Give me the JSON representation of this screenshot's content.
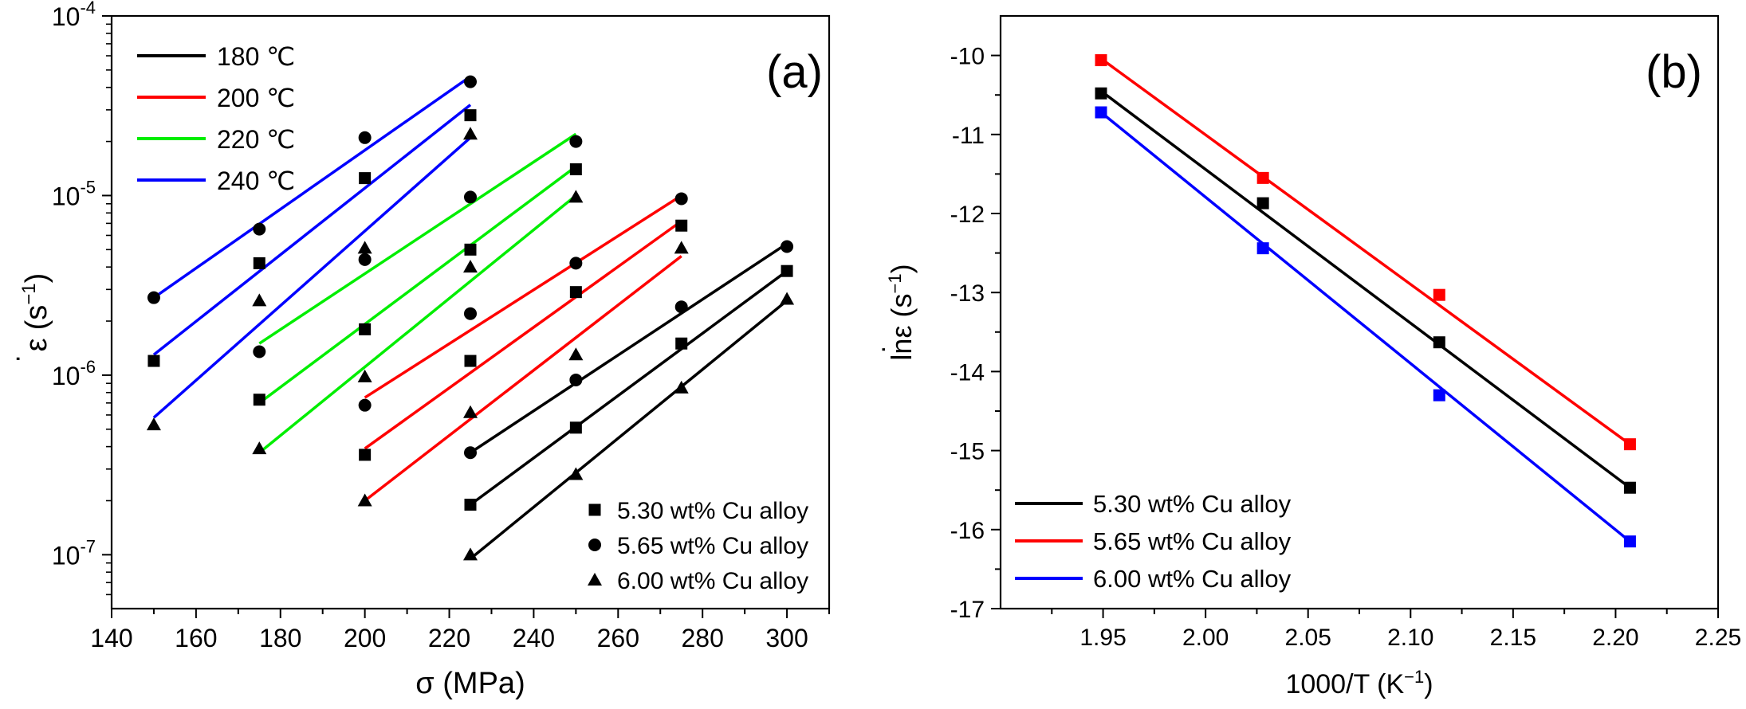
{
  "chart_data": [
    {
      "type": "scatter",
      "panel_label": "(a)",
      "xlabel": "σ (MPa)",
      "ylabel_main": "ε",
      "ylabel_unit": "(s",
      "ylabel_exp": "−1",
      "ylabel_close": ")",
      "xlim": [
        140,
        310
      ],
      "ylim_log10": [
        -7.3,
        -4
      ],
      "y_scale": "log",
      "x_ticks": [
        140,
        160,
        180,
        200,
        220,
        240,
        260,
        280,
        300
      ],
      "x_tick_labels": [
        "140",
        "160",
        "180",
        "200",
        "220",
        "240",
        "260",
        "280",
        "300"
      ],
      "y_ticks_log10": [
        -7,
        -6,
        -5,
        -4
      ],
      "y_tick_labels": [
        {
          "base": "10",
          "exp": "-7"
        },
        {
          "base": "10",
          "exp": "-6"
        },
        {
          "base": "10",
          "exp": "-5"
        },
        {
          "base": "10",
          "exp": "-4"
        }
      ],
      "legend_lines": [
        {
          "label": "180 ℃",
          "color": "#000000"
        },
        {
          "label": "200 ℃",
          "color": "#ff0000"
        },
        {
          "label": "220 ℃",
          "color": "#00ee00"
        },
        {
          "label": "240 ℃",
          "color": "#0000ff"
        }
      ],
      "legend_markers": [
        {
          "label": "5.30 wt% Cu alloy",
          "marker": "square"
        },
        {
          "label": "5.65 wt% Cu alloy",
          "marker": "circle"
        },
        {
          "label": "6.00 wt% Cu alloy",
          "marker": "triangle"
        }
      ],
      "series": [
        {
          "name": "180 ℃ / 5.30 wt% Cu alloy",
          "color": "#000000",
          "marker": "square",
          "x": [
            225,
            250,
            275,
            300
          ],
          "y": [
            1.9e-07,
            5.1e-07,
            1.5e-06,
            3.8e-06
          ],
          "fit": [
            [
              225,
              1.9e-07
            ],
            [
              300,
              3.8e-06
            ]
          ]
        },
        {
          "name": "180 ℃ / 5.65 wt% Cu alloy",
          "color": "#000000",
          "marker": "circle",
          "x": [
            225,
            250,
            275,
            300
          ],
          "y": [
            3.7e-07,
            9.4e-07,
            2.4e-06,
            5.2e-06
          ],
          "fit": [
            [
              225,
              3.7e-07
            ],
            [
              300,
              5.4e-06
            ]
          ]
        },
        {
          "name": "180 ℃ / 6.00 wt% Cu alloy",
          "color": "#000000",
          "marker": "triangle",
          "x": [
            225,
            250,
            275,
            300
          ],
          "y": [
            1e-07,
            2.8e-07,
            8.5e-07,
            2.65e-06
          ],
          "fit": [
            [
              225,
              9.5e-08
            ],
            [
              300,
              2.6e-06
            ]
          ]
        },
        {
          "name": "200 ℃ / 5.30 wt% Cu alloy",
          "color": "#ff0000",
          "marker": "square",
          "x": [
            200,
            225,
            250,
            275
          ],
          "y": [
            3.6e-07,
            1.2e-06,
            2.9e-06,
            6.8e-06
          ],
          "fit": [
            [
              200,
              3.9e-07
            ],
            [
              275,
              7.2e-06
            ]
          ]
        },
        {
          "name": "200 ℃ / 5.65 wt% Cu alloy",
          "color": "#ff0000",
          "marker": "circle",
          "x": [
            200,
            225,
            250,
            275
          ],
          "y": [
            6.8e-07,
            2.2e-06,
            4.2e-06,
            9.6e-06
          ],
          "fit": [
            [
              200,
              7.5e-07
            ],
            [
              275,
              1e-05
            ]
          ]
        },
        {
          "name": "200 ℃ / 6.00 wt% Cu alloy",
          "color": "#ff0000",
          "marker": "triangle",
          "x": [
            200,
            225,
            250,
            275
          ],
          "y": [
            2e-07,
            6.2e-07,
            1.3e-06,
            5.1e-06
          ],
          "fit": [
            [
              200,
              2e-07
            ],
            [
              275,
              4.6e-06
            ]
          ]
        },
        {
          "name": "220 ℃ / 5.30 wt% Cu alloy",
          "color": "#00ee00",
          "marker": "square",
          "x": [
            175,
            200,
            225,
            250
          ],
          "y": [
            7.3e-07,
            1.8e-06,
            5e-06,
            1.4e-05
          ],
          "fit": [
            [
              175,
              7e-07
            ],
            [
              250,
              1.45e-05
            ]
          ]
        },
        {
          "name": "220 ℃ / 5.65 wt% Cu alloy",
          "color": "#00ee00",
          "marker": "circle",
          "x": [
            175,
            200,
            225,
            250
          ],
          "y": [
            1.35e-06,
            4.4e-06,
            9.8e-06,
            2e-05
          ],
          "fit": [
            [
              175,
              1.5e-06
            ],
            [
              250,
              2.2e-05
            ]
          ]
        },
        {
          "name": "220 ℃ / 6.00 wt% Cu alloy",
          "color": "#00ee00",
          "marker": "triangle",
          "x": [
            175,
            200,
            225,
            250
          ],
          "y": [
            3.9e-07,
            9.8e-07,
            4e-06,
            9.8e-06
          ],
          "fit": [
            [
              175,
              3.7e-07
            ],
            [
              250,
              1e-05
            ]
          ]
        },
        {
          "name": "240 ℃ / 5.30 wt% Cu alloy",
          "color": "#0000ff",
          "marker": "square",
          "x": [
            150,
            175,
            200,
            225
          ],
          "y": [
            1.2e-06,
            4.2e-06,
            1.25e-05,
            2.8e-05
          ],
          "fit": [
            [
              150,
              1.3e-06
            ],
            [
              225,
              3.2e-05
            ]
          ]
        },
        {
          "name": "240 ℃ / 5.65 wt% Cu alloy",
          "color": "#0000ff",
          "marker": "circle",
          "x": [
            150,
            175,
            200,
            225
          ],
          "y": [
            2.7e-06,
            6.5e-06,
            2.1e-05,
            4.3e-05
          ],
          "fit": [
            [
              150,
              2.7e-06
            ],
            [
              225,
              4.6e-05
            ]
          ]
        },
        {
          "name": "240 ℃ / 6.00 wt% Cu alloy",
          "color": "#0000ff",
          "marker": "triangle",
          "x": [
            150,
            175,
            200,
            225
          ],
          "y": [
            5.3e-07,
            2.6e-06,
            5.1e-06,
            2.2e-05
          ],
          "fit": [
            [
              150,
              5.8e-07
            ],
            [
              225,
              2.1e-05
            ]
          ]
        }
      ]
    },
    {
      "type": "line",
      "panel_label": "(b)",
      "xlabel_main": "1000/T (K",
      "xlabel_exp": "−1",
      "xlabel_close": ")",
      "ylabel_main": "lnε",
      "ylabel_unit": " (s",
      "ylabel_exp": "−1",
      "ylabel_close": ")",
      "xlim": [
        1.9,
        2.25
      ],
      "ylim": [
        -17,
        -9.5
      ],
      "x_ticks": [
        1.95,
        2.0,
        2.05,
        2.1,
        2.15,
        2.2,
        2.25
      ],
      "x_tick_labels": [
        "1.95",
        "2.00",
        "2.05",
        "2.10",
        "2.15",
        "2.20",
        "2.25"
      ],
      "y_ticks": [
        -17,
        -16,
        -15,
        -14,
        -13,
        -12,
        -11,
        -10
      ],
      "y_tick_labels": [
        "-17",
        "-16",
        "-15",
        "-14",
        "-13",
        "-12",
        "-11",
        "-10"
      ],
      "legend": [
        {
          "label": "5.30 wt% Cu alloy",
          "color": "#000000"
        },
        {
          "label": "5.65 wt% Cu alloy",
          "color": "#ff0000"
        },
        {
          "label": "6.00 wt% Cu alloy",
          "color": "#0000ff"
        }
      ],
      "series": [
        {
          "name": "5.30 wt% Cu alloy",
          "color": "#000000",
          "marker": "square",
          "x": [
            1.949,
            2.028,
            2.114,
            2.207
          ],
          "y": [
            -10.48,
            -11.87,
            -13.63,
            -15.47
          ],
          "fit": [
            [
              1.949,
              -10.45
            ],
            [
              2.207,
              -15.47
            ]
          ]
        },
        {
          "name": "5.65 wt% Cu alloy",
          "color": "#ff0000",
          "marker": "square",
          "x": [
            1.949,
            2.028,
            2.114,
            2.207
          ],
          "y": [
            -10.06,
            -11.55,
            -13.03,
            -14.92
          ],
          "fit": [
            [
              1.949,
              -10.04
            ],
            [
              2.207,
              -14.92
            ]
          ]
        },
        {
          "name": "6.00 wt% Cu alloy",
          "color": "#0000ff",
          "marker": "square",
          "x": [
            1.949,
            2.028,
            2.114,
            2.207
          ],
          "y": [
            -10.72,
            -12.44,
            -14.3,
            -16.15
          ],
          "fit": [
            [
              1.949,
              -10.72
            ],
            [
              2.207,
              -16.15
            ]
          ]
        }
      ]
    }
  ]
}
